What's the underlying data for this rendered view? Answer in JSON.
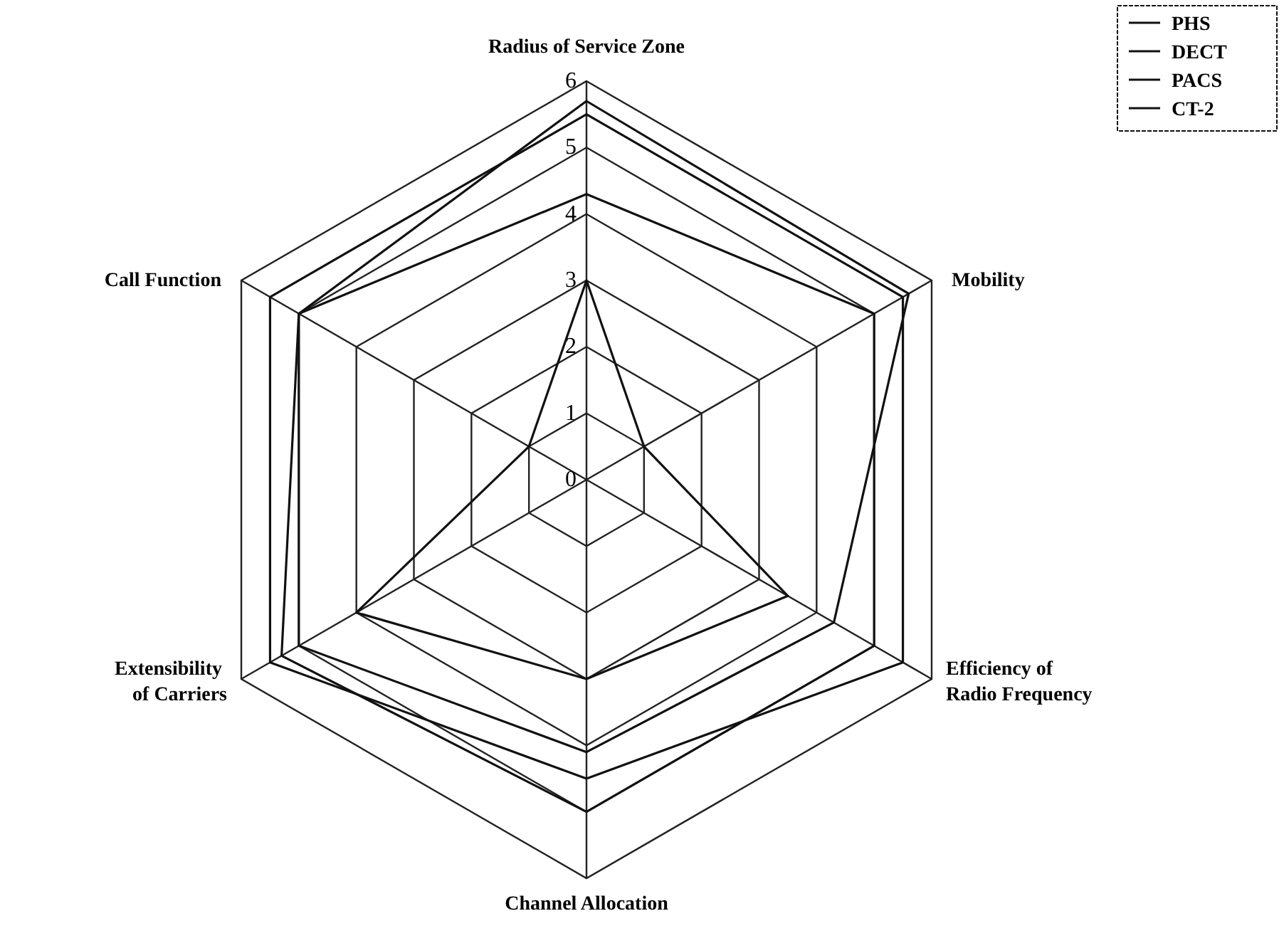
{
  "chart_data": {
    "type": "radar",
    "categories": [
      "Radius of Service Zone",
      "Mobility",
      "Efficiency of Radio Frequency",
      "Channel Allocation",
      "Extensibility of Carriers",
      "Call Function"
    ],
    "ylim": [
      0,
      6
    ],
    "yticks": [
      0,
      1,
      2,
      3,
      4,
      5,
      6
    ],
    "legend": "top right",
    "line_style": "solid",
    "series": [
      {
        "name": "PHS",
        "color": "#111111",
        "values": [
          5.7,
          5.6,
          4.3,
          4.1,
          5,
          5
        ]
      },
      {
        "name": "DECT",
        "color": "#111111",
        "values": [
          3,
          1,
          3.5,
          3,
          4,
          1
        ]
      },
      {
        "name": "PACS",
        "color": "#111111",
        "values": [
          4.3,
          5,
          5,
          5,
          5.3,
          5
        ]
      },
      {
        "name": "CT-2",
        "color": "#111111",
        "values": [
          5.5,
          5.5,
          5.5,
          4.5,
          5.5,
          5.5
        ]
      }
    ]
  }
}
